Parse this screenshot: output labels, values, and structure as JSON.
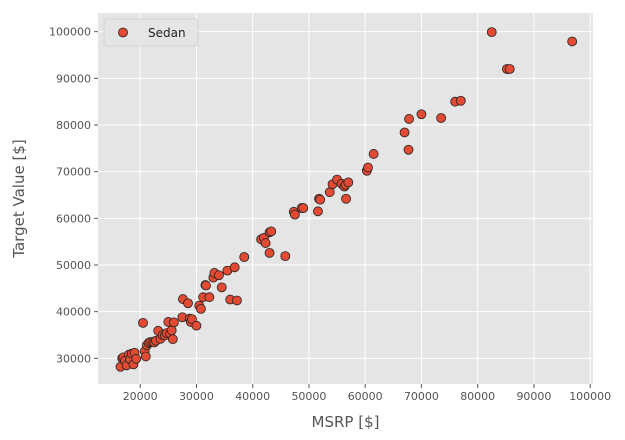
{
  "chart_data": {
    "type": "scatter",
    "xlabel": "MSRP [$]",
    "ylabel": "Target Value [$]",
    "xlim": [
      12500,
      100500
    ],
    "ylim": [
      24500,
      104000
    ],
    "x_ticks": [
      20000,
      30000,
      40000,
      50000,
      60000,
      70000,
      80000,
      90000,
      100000
    ],
    "x_tick_labels": [
      "20000",
      "30000",
      "40000",
      "50000",
      "60000",
      "70000",
      "80000",
      "90000",
      "100000"
    ],
    "y_ticks": [
      30000,
      40000,
      50000,
      60000,
      70000,
      80000,
      90000,
      100000
    ],
    "y_tick_labels": [
      "30000",
      "40000",
      "50000",
      "60000",
      "70000",
      "80000",
      "90000",
      "100000"
    ],
    "grid": true,
    "legend_position": "top-left",
    "series": [
      {
        "name": "Sedan",
        "color": "#e24a33",
        "edge_color": "#222222",
        "points": [
          [
            16500,
            28200
          ],
          [
            16800,
            30000
          ],
          [
            17000,
            30200
          ],
          [
            17300,
            29500
          ],
          [
            17600,
            28500
          ],
          [
            18000,
            30800
          ],
          [
            18200,
            29800
          ],
          [
            18500,
            31000
          ],
          [
            18800,
            28700
          ],
          [
            19000,
            31200
          ],
          [
            19300,
            29900
          ],
          [
            20500,
            37600
          ],
          [
            20800,
            31500
          ],
          [
            21000,
            30400
          ],
          [
            21200,
            32800
          ],
          [
            21500,
            33300
          ],
          [
            21800,
            33500
          ],
          [
            22200,
            33500
          ],
          [
            22500,
            33400
          ],
          [
            22800,
            33800
          ],
          [
            23200,
            35900
          ],
          [
            23600,
            34200
          ],
          [
            24000,
            35000
          ],
          [
            24400,
            34900
          ],
          [
            24700,
            35400
          ],
          [
            25000,
            37800
          ],
          [
            25300,
            35300
          ],
          [
            25600,
            36000
          ],
          [
            25800,
            34100
          ],
          [
            26000,
            37700
          ],
          [
            27500,
            38800
          ],
          [
            27600,
            42700
          ],
          [
            28500,
            41800
          ],
          [
            28800,
            38500
          ],
          [
            29000,
            37800
          ],
          [
            29200,
            38400
          ],
          [
            30000,
            37000
          ],
          [
            30500,
            41300
          ],
          [
            30800,
            40600
          ],
          [
            31200,
            43100
          ],
          [
            31600,
            45700
          ],
          [
            31700,
            45600
          ],
          [
            32300,
            43100
          ],
          [
            33000,
            47300
          ],
          [
            33200,
            48300
          ],
          [
            34000,
            47800
          ],
          [
            34500,
            45200
          ],
          [
            35500,
            48800
          ],
          [
            36000,
            42600
          ],
          [
            36800,
            49500
          ],
          [
            37200,
            42400
          ],
          [
            38500,
            51700
          ],
          [
            41500,
            55500
          ],
          [
            42000,
            55800
          ],
          [
            42300,
            54700
          ],
          [
            43000,
            52600
          ],
          [
            43000,
            57000
          ],
          [
            43300,
            57200
          ],
          [
            45800,
            51900
          ],
          [
            47300,
            61400
          ],
          [
            47500,
            60800
          ],
          [
            48700,
            62200
          ],
          [
            49000,
            62200
          ],
          [
            51600,
            61500
          ],
          [
            51800,
            64200
          ],
          [
            52000,
            64000
          ],
          [
            53700,
            65600
          ],
          [
            54200,
            67300
          ],
          [
            55000,
            68300
          ],
          [
            55800,
            67400
          ],
          [
            56300,
            66800
          ],
          [
            56500,
            67200
          ],
          [
            56600,
            64200
          ],
          [
            57000,
            67700
          ],
          [
            60300,
            70200
          ],
          [
            60500,
            70900
          ],
          [
            61500,
            73800
          ],
          [
            67000,
            78400
          ],
          [
            67700,
            74700
          ],
          [
            67800,
            81300
          ],
          [
            70000,
            82300
          ],
          [
            73500,
            81500
          ],
          [
            76000,
            85000
          ],
          [
            77000,
            85200
          ],
          [
            82500,
            99900
          ],
          [
            85200,
            92000
          ],
          [
            85700,
            92000
          ],
          [
            96800,
            97900
          ]
        ]
      }
    ]
  }
}
